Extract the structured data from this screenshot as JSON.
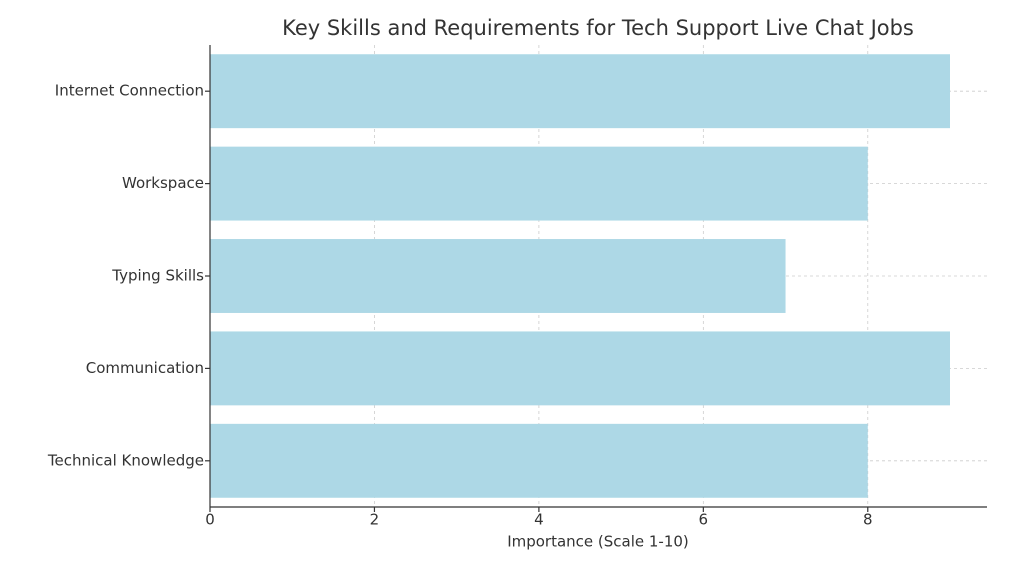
{
  "chart_data": {
    "type": "barh",
    "title": "Key Skills and Requirements for Tech Support Live Chat Jobs",
    "xlabel": "Importance (Scale 1-10)",
    "categories": [
      "Internet Connection",
      "Workspace",
      "Typing Skills",
      "Communication",
      "Technical Knowledge"
    ],
    "values": [
      9,
      8,
      7,
      9,
      8
    ],
    "color": "#add8e6",
    "xlim": [
      0,
      9.45
    ],
    "xticks": [
      0,
      2,
      4,
      6,
      8
    ],
    "grid": true
  }
}
